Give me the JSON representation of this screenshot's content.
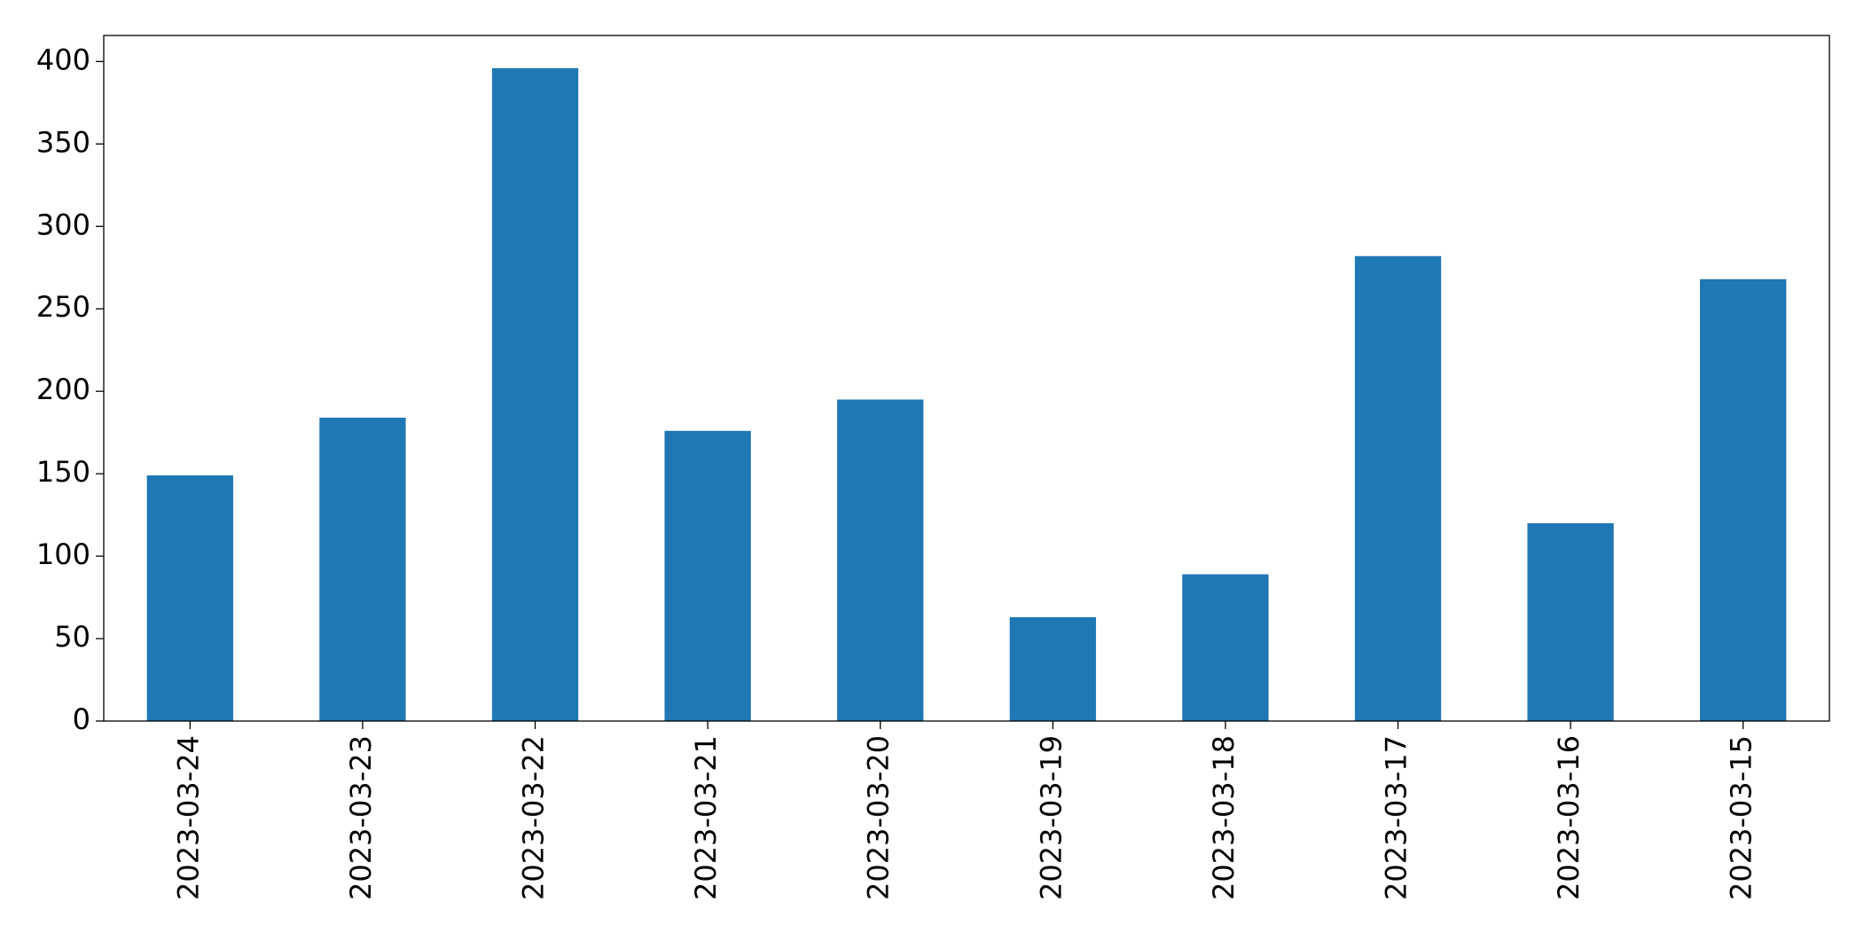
{
  "chart_data": {
    "type": "bar",
    "categories": [
      "2023-03-24",
      "2023-03-23",
      "2023-03-22",
      "2023-03-21",
      "2023-03-20",
      "2023-03-19",
      "2023-03-18",
      "2023-03-17",
      "2023-03-16",
      "2023-03-15"
    ],
    "values": [
      149,
      184,
      396,
      176,
      195,
      63,
      89,
      282,
      120,
      268
    ],
    "color": "#1f77b4",
    "ylim": [
      0,
      415.8
    ],
    "yticks": [
      0,
      50,
      100,
      150,
      200,
      250,
      300,
      350,
      400
    ],
    "grid": false
  }
}
